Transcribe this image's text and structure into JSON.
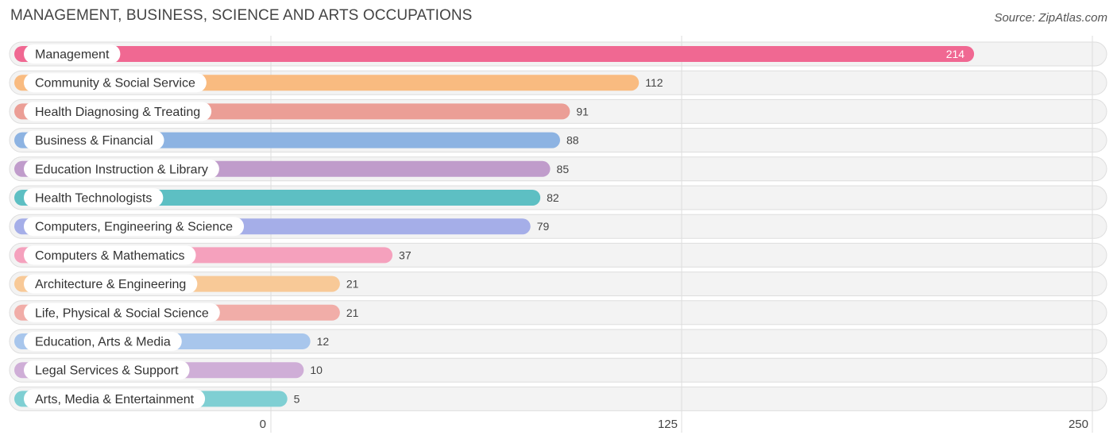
{
  "chart_data": {
    "type": "bar",
    "orientation": "horizontal",
    "title": "MANAGEMENT, BUSINESS, SCIENCE AND ARTS OCCUPATIONS",
    "source": "Source: ZipAtlas.com",
    "categories": [
      "Management",
      "Community & Social Service",
      "Health Diagnosing & Treating",
      "Business & Financial",
      "Education Instruction & Library",
      "Health Technologists",
      "Computers, Engineering & Science",
      "Computers & Mathematics",
      "Architecture & Engineering",
      "Life, Physical & Social Science",
      "Education, Arts & Media",
      "Legal Services & Support",
      "Arts, Media & Entertainment"
    ],
    "values": [
      214,
      112,
      91,
      88,
      85,
      82,
      79,
      37,
      21,
      21,
      12,
      10,
      5
    ],
    "colors": [
      "#f06892",
      "#f9bb80",
      "#eb9e96",
      "#8db3e2",
      "#c09ccb",
      "#5dbfc3",
      "#a5aee8",
      "#f5a1bd",
      "#f8c997",
      "#f1ada8",
      "#a8c6ec",
      "#cfaed7",
      "#7fcfd3"
    ],
    "xlim": [
      0,
      250
    ],
    "xticks": [
      0,
      125,
      250
    ],
    "xlabel": "",
    "ylabel": "",
    "grid": true
  }
}
